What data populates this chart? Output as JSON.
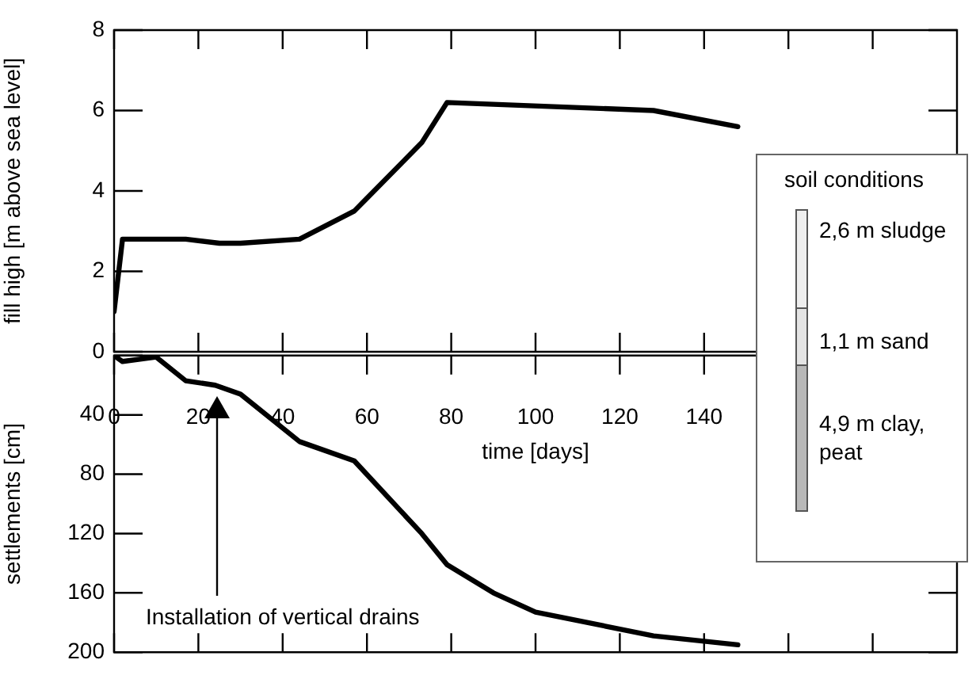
{
  "chart_data": [
    {
      "type": "line",
      "ylabel": "fill high [m above sea level]",
      "xlabel": "time [days]",
      "x": [
        0,
        2,
        17,
        25,
        30,
        44,
        57,
        73,
        79,
        128,
        148
      ],
      "series": [
        {
          "color": "#000000",
          "values": [
            1.0,
            2.8,
            2.8,
            2.7,
            2.7,
            2.8,
            3.5,
            5.2,
            6.2,
            6.0,
            5.6
          ]
        }
      ],
      "xlim": [
        0,
        200
      ],
      "xticks": [
        0,
        20,
        40,
        60,
        80,
        100,
        120,
        140,
        {
          "value": 160,
          "label": null
        },
        {
          "value": 180,
          "label": null
        }
      ],
      "ylim": [
        0,
        8
      ],
      "yticks": [
        0,
        2,
        4,
        6,
        8
      ],
      "marker": "none",
      "line_style": "solid",
      "legend": false,
      "annotations": [
        "soil conditions",
        "2,6 m sludge",
        "1,1 m sand",
        "4,9 m  clay, peat"
      ]
    },
    {
      "type": "line",
      "ylabel": "settlements [cm]",
      "x": [
        0,
        2,
        10,
        17,
        24,
        30,
        44,
        57,
        73,
        79,
        90,
        100,
        128,
        148
      ],
      "series": [
        {
          "color": "#000000",
          "values": [
            0,
            4,
            1,
            17,
            20,
            26,
            58,
            71,
            120,
            141,
            160,
            173,
            189,
            195
          ]
        }
      ],
      "xlim": [
        0,
        200
      ],
      "xticks": [
        {
          "value": 0,
          "label": null
        },
        {
          "value": 20,
          "label": null
        },
        {
          "value": 40,
          "label": null
        },
        {
          "value": 60,
          "label": null
        },
        {
          "value": 80,
          "label": null
        },
        {
          "value": 100,
          "label": null
        },
        {
          "value": 120,
          "label": null
        },
        {
          "value": 140,
          "label": null
        },
        {
          "value": 160,
          "label": null
        },
        {
          "value": 180,
          "label": null
        }
      ],
      "ylim": [
        200,
        0
      ],
      "yticks": [
        {
          "value": 0,
          "label": null
        },
        40,
        80,
        120,
        160,
        200
      ],
      "tick_labels": "y",
      "marker": "none",
      "line_style": "solid",
      "legend": false,
      "annotations": [
        "Installation of vertical drains"
      ]
    }
  ]
}
